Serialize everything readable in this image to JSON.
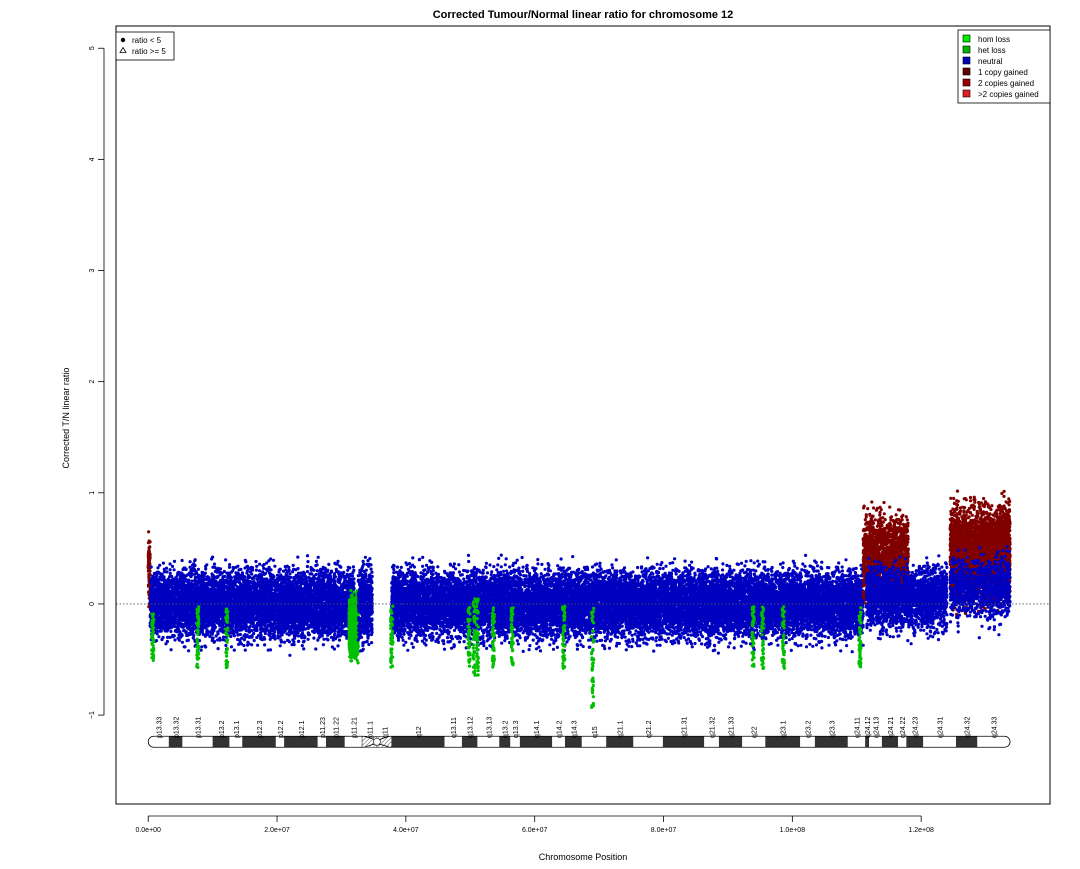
{
  "chart_data": {
    "type": "scatter",
    "title": "Corrected Tumour/Normal linear ratio for chromosome  12",
    "xlabel": "Chromosome Position",
    "ylabel": "Corrected T/N linear ratio",
    "xlim": [
      -5000000,
      140000000
    ],
    "ylim": [
      -1.8,
      5.2
    ],
    "x_ticks": [
      {
        "value": 0,
        "label": "0.0e+00"
      },
      {
        "value": 20000000,
        "label": "2.0e+07"
      },
      {
        "value": 40000000,
        "label": "4.0e+07"
      },
      {
        "value": 60000000,
        "label": "6.0e+07"
      },
      {
        "value": 80000000,
        "label": "8.0e+07"
      },
      {
        "value": 100000000,
        "label": "1.0e+08"
      },
      {
        "value": 120000000,
        "label": "1.2e+08"
      }
    ],
    "y_ticks": [
      {
        "value": -1,
        "label": "−1"
      },
      {
        "value": 0,
        "label": "0"
      },
      {
        "value": 1,
        "label": "1"
      },
      {
        "value": 2,
        "label": "2"
      },
      {
        "value": 3,
        "label": "3"
      },
      {
        "value": 4,
        "label": "4"
      },
      {
        "value": 5,
        "label": "5"
      }
    ],
    "reference_line_y": 0,
    "shape_legend": {
      "placement": "top-left",
      "entries": [
        {
          "symbol": "dot",
          "label": "ratio < 5"
        },
        {
          "symbol": "triangle",
          "label": "ratio >= 5"
        }
      ]
    },
    "legend": {
      "placement": "top-right",
      "entries": [
        {
          "label": "hom loss",
          "color": "#00ee00"
        },
        {
          "label": "het loss",
          "color": "#00b400"
        },
        {
          "label": "neutral",
          "color": "#0000b8"
        },
        {
          "label": "1 copy gained",
          "color": "#640000"
        },
        {
          "label": "2 copies gained",
          "color": "#9a0000"
        },
        {
          "label": ">2 copies gained",
          "color": "#e02020"
        }
      ]
    },
    "segments": [
      {
        "state": "1 copy gained",
        "color": "#800000",
        "start": 0,
        "end": 300000,
        "center": 0.3,
        "spread": 0.3,
        "density": 40
      },
      {
        "state": "neutral",
        "color": "#0000c0",
        "start": 300000,
        "end": 32000000,
        "center": 0.0,
        "spread": 0.26,
        "density": 34
      },
      {
        "state": "het loss",
        "color": "#00c000",
        "start": 31200000,
        "end": 32600000,
        "center": -0.2,
        "spread": 0.2,
        "density": 220
      },
      {
        "state": "neutral",
        "color": "#0000c0",
        "start": 32600000,
        "end": 34800000,
        "center": 0.0,
        "spread": 0.3,
        "density": 34
      },
      {
        "state": "neutral",
        "color": "#0000c0",
        "start": 37800000,
        "end": 111000000,
        "center": 0.0,
        "spread": 0.26,
        "density": 34
      },
      {
        "state": "1 copy gained",
        "color": "#800000",
        "start": 111000000,
        "end": 118000000,
        "center": 0.4,
        "spread": 0.32,
        "density": 40
      },
      {
        "state": "neutral",
        "color": "#0000c0",
        "start": 111500000,
        "end": 124000000,
        "center": 0.05,
        "spread": 0.24,
        "density": 26
      },
      {
        "state": "1 copy gained",
        "color": "#800000",
        "start": 124500000,
        "end": 133800000,
        "center": 0.45,
        "spread": 0.35,
        "density": 60
      },
      {
        "state": "neutral",
        "color": "#0000c0",
        "start": 124500000,
        "end": 133800000,
        "center": 0.15,
        "spread": 0.25,
        "density": 16
      }
    ],
    "loss_strips": [
      {
        "state": "het loss",
        "color": "#00c000",
        "x": 700000,
        "center": -0.3,
        "spread": 0.15
      },
      {
        "state": "het loss",
        "color": "#00c000",
        "x": 7700000,
        "center": -0.3,
        "spread": 0.2
      },
      {
        "state": "het loss",
        "color": "#00c000",
        "x": 12200000,
        "center": -0.3,
        "spread": 0.2
      },
      {
        "state": "het loss",
        "color": "#00c000",
        "x": 37800000,
        "center": -0.3,
        "spread": 0.2
      },
      {
        "state": "het loss",
        "color": "#00c000",
        "x": 49800000,
        "center": -0.3,
        "spread": 0.2
      },
      {
        "state": "het loss",
        "color": "#00c000",
        "x": 50600000,
        "center": -0.3,
        "spread": 0.25
      },
      {
        "state": "het loss",
        "color": "#00c000",
        "x": 51100000,
        "center": -0.3,
        "spread": 0.25
      },
      {
        "state": "het loss",
        "color": "#00c000",
        "x": 53600000,
        "center": -0.3,
        "spread": 0.2
      },
      {
        "state": "het loss",
        "color": "#00c000",
        "x": 56500000,
        "center": -0.3,
        "spread": 0.2
      },
      {
        "state": "het loss",
        "color": "#00c000",
        "x": 64500000,
        "center": -0.3,
        "spread": 0.2
      },
      {
        "state": "het loss",
        "color": "#00c000",
        "x": 69000000,
        "center": -0.45,
        "spread": 0.35
      },
      {
        "state": "het loss",
        "color": "#00c000",
        "x": 93900000,
        "center": -0.3,
        "spread": 0.2
      },
      {
        "state": "het loss",
        "color": "#00c000",
        "x": 95400000,
        "center": -0.3,
        "spread": 0.2
      },
      {
        "state": "het loss",
        "color": "#00c000",
        "x": 98600000,
        "center": -0.3,
        "spread": 0.2
      },
      {
        "state": "het loss",
        "color": "#00c000",
        "x": 110500000,
        "center": -0.3,
        "spread": 0.2
      }
    ],
    "ideogram": {
      "y_level": -1.24,
      "chrom_length": 133800000,
      "centromere": [
        33500000,
        37500000
      ],
      "bands": [
        {
          "name": "p13.33",
          "start": 0,
          "end": 3200000,
          "stain": "gneg"
        },
        {
          "name": "p13.32",
          "start": 3200000,
          "end": 5300000,
          "stain": "gpos"
        },
        {
          "name": "p13.31",
          "start": 5300000,
          "end": 10000000,
          "stain": "gneg"
        },
        {
          "name": "p13.2",
          "start": 10000000,
          "end": 12600000,
          "stain": "gpos"
        },
        {
          "name": "p13.1",
          "start": 12600000,
          "end": 14600000,
          "stain": "gneg"
        },
        {
          "name": "p12.3",
          "start": 14600000,
          "end": 19800000,
          "stain": "gpos"
        },
        {
          "name": "p12.2",
          "start": 19800000,
          "end": 21100000,
          "stain": "gneg"
        },
        {
          "name": "p12.1",
          "start": 21100000,
          "end": 26300000,
          "stain": "gpos"
        },
        {
          "name": "p11.23",
          "start": 26300000,
          "end": 27600000,
          "stain": "gneg"
        },
        {
          "name": "p11.22",
          "start": 27600000,
          "end": 30500000,
          "stain": "gpos"
        },
        {
          "name": "p11.21",
          "start": 30500000,
          "end": 33200000,
          "stain": "gneg"
        },
        {
          "name": "p11.1",
          "start": 33200000,
          "end": 35500000,
          "stain": "stalk"
        },
        {
          "name": "q11",
          "start": 35500000,
          "end": 37800000,
          "stain": "stalk"
        },
        {
          "name": "q12",
          "start": 37800000,
          "end": 46000000,
          "stain": "gpos"
        },
        {
          "name": "q13.11",
          "start": 46000000,
          "end": 48700000,
          "stain": "gneg"
        },
        {
          "name": "q13.12",
          "start": 48700000,
          "end": 51100000,
          "stain": "gpos"
        },
        {
          "name": "q13.13",
          "start": 51100000,
          "end": 54500000,
          "stain": "gneg"
        },
        {
          "name": "q13.2",
          "start": 54500000,
          "end": 56200000,
          "stain": "gpos"
        },
        {
          "name": "q13.3",
          "start": 56200000,
          "end": 57700000,
          "stain": "gneg"
        },
        {
          "name": "q14.1",
          "start": 57700000,
          "end": 62700000,
          "stain": "gpos"
        },
        {
          "name": "q14.2",
          "start": 62700000,
          "end": 64700000,
          "stain": "gneg"
        },
        {
          "name": "q14.3",
          "start": 64700000,
          "end": 67300000,
          "stain": "gpos"
        },
        {
          "name": "q15",
          "start": 67300000,
          "end": 71100000,
          "stain": "gneg"
        },
        {
          "name": "q21.1",
          "start": 71100000,
          "end": 75300000,
          "stain": "gpos"
        },
        {
          "name": "q21.2",
          "start": 75300000,
          "end": 79900000,
          "stain": "gneg"
        },
        {
          "name": "q21.31",
          "start": 79900000,
          "end": 86300000,
          "stain": "gpos"
        },
        {
          "name": "q21.32",
          "start": 86300000,
          "end": 88600000,
          "stain": "gneg"
        },
        {
          "name": "q21.33",
          "start": 88600000,
          "end": 92200000,
          "stain": "gpos"
        },
        {
          "name": "q22",
          "start": 92200000,
          "end": 95800000,
          "stain": "gneg"
        },
        {
          "name": "q23.1",
          "start": 95800000,
          "end": 101200000,
          "stain": "gpos"
        },
        {
          "name": "q23.2",
          "start": 101200000,
          "end": 103500000,
          "stain": "gneg"
        },
        {
          "name": "q23.3",
          "start": 103500000,
          "end": 108600000,
          "stain": "gpos"
        },
        {
          "name": "q24.11",
          "start": 108600000,
          "end": 111300000,
          "stain": "gneg"
        },
        {
          "name": "q24.12",
          "start": 111300000,
          "end": 111900000,
          "stain": "gpos"
        },
        {
          "name": "q24.13",
          "start": 111900000,
          "end": 113900000,
          "stain": "gneg"
        },
        {
          "name": "q24.21",
          "start": 113900000,
          "end": 116400000,
          "stain": "gpos"
        },
        {
          "name": "q24.22",
          "start": 116400000,
          "end": 117700000,
          "stain": "gneg"
        },
        {
          "name": "q24.23",
          "start": 117700000,
          "end": 120300000,
          "stain": "gpos"
        },
        {
          "name": "q24.31",
          "start": 120300000,
          "end": 125400000,
          "stain": "gneg"
        },
        {
          "name": "q24.32",
          "start": 125400000,
          "end": 128700000,
          "stain": "gpos"
        },
        {
          "name": "q24.33",
          "start": 128700000,
          "end": 133800000,
          "stain": "gneg"
        }
      ]
    }
  }
}
